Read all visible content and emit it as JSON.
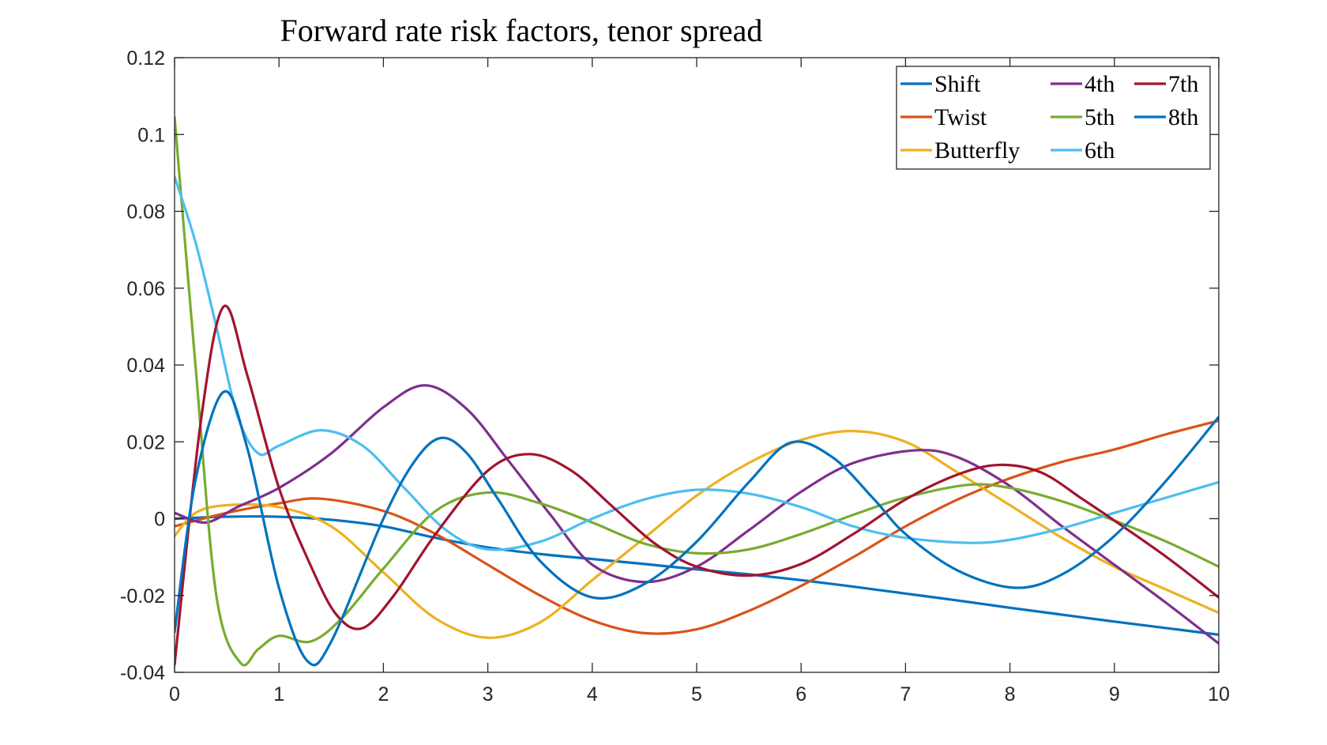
{
  "chart_data": {
    "type": "line",
    "title": "Forward rate risk factors, tenor spread",
    "xlabel": "",
    "ylabel": "",
    "xlim": [
      0,
      10
    ],
    "ylim": [
      -0.04,
      0.12
    ],
    "xticks": [
      0,
      1,
      2,
      3,
      4,
      5,
      6,
      7,
      8,
      9,
      10
    ],
    "xtick_labels": [
      "0",
      "1",
      "2",
      "3",
      "4",
      "5",
      "6",
      "7",
      "8",
      "9",
      "10"
    ],
    "yticks": [
      -0.04,
      -0.02,
      0,
      0.02,
      0.04,
      0.06,
      0.08,
      0.1,
      0.12
    ],
    "ytick_labels": [
      "-0.04",
      "-0.02",
      "0",
      "0.02",
      "0.04",
      "0.06",
      "0.08",
      "0.1",
      "0.12"
    ],
    "grid": false,
    "legend_position": "top-right",
    "legend_columns": [
      [
        "Shift",
        "Twist",
        "Butterfly"
      ],
      [
        "4th",
        "5th",
        "6th"
      ],
      [
        "7th",
        "8th"
      ]
    ],
    "series": [
      {
        "name": "Shift",
        "color": "#0072BD",
        "x": [
          0,
          0.5,
          1,
          1.5,
          2,
          2.5,
          3,
          3.5,
          4,
          4.5,
          5,
          5.5,
          6,
          6.5,
          7,
          7.5,
          8,
          8.5,
          9,
          9.5,
          10
        ],
        "y": [
          0,
          0.0005,
          0.0005,
          -0.0003,
          -0.002,
          -0.005,
          -0.0075,
          -0.0092,
          -0.0105,
          -0.0118,
          -0.0132,
          -0.0145,
          -0.016,
          -0.0177,
          -0.0195,
          -0.0213,
          -0.0232,
          -0.025,
          -0.0268,
          -0.0285,
          -0.0302
        ]
      },
      {
        "name": "Twist",
        "color": "#D95319",
        "x": [
          0,
          0.5,
          1,
          1.4,
          2,
          2.5,
          3,
          3.5,
          4,
          4.5,
          5,
          5.5,
          6,
          6.5,
          7,
          7.5,
          8,
          8.5,
          9,
          9.5,
          10
        ],
        "y": [
          -0.002,
          0.0015,
          0.004,
          0.0052,
          0.002,
          -0.004,
          -0.012,
          -0.02,
          -0.0265,
          -0.0298,
          -0.0288,
          -0.024,
          -0.0175,
          -0.01,
          -0.002,
          0.005,
          0.0105,
          0.0148,
          0.018,
          0.022,
          0.0255
        ]
      },
      {
        "name": "Butterfly",
        "color": "#EDB120",
        "x": [
          0,
          0.2,
          0.5,
          1,
          1.5,
          2,
          2.5,
          3,
          3.5,
          4,
          4.5,
          5,
          5.5,
          6,
          6.5,
          7,
          7.5,
          8,
          8.5,
          9,
          9.5,
          10
        ],
        "y": [
          -0.0045,
          0.0015,
          0.0035,
          0.003,
          -0.002,
          -0.014,
          -0.026,
          -0.031,
          -0.027,
          -0.016,
          -0.005,
          0.006,
          0.0145,
          0.0205,
          0.0228,
          0.02,
          0.012,
          0.0035,
          -0.005,
          -0.0125,
          -0.0185,
          -0.0245
        ]
      },
      {
        "name": "4th",
        "color": "#7E2F8E",
        "x": [
          0,
          0.3,
          0.6,
          1,
          1.5,
          2,
          2.4,
          2.8,
          3.2,
          3.6,
          4,
          4.5,
          5,
          5.5,
          6,
          6.5,
          7.1,
          7.5,
          8,
          8.5,
          9,
          9.5,
          10
        ],
        "y": [
          0.0015,
          -0.001,
          0.003,
          0.008,
          0.017,
          0.029,
          0.0347,
          0.0285,
          0.015,
          0.001,
          -0.012,
          -0.0165,
          -0.0125,
          -0.003,
          0.007,
          0.0145,
          0.0178,
          0.016,
          0.0085,
          -0.002,
          -0.012,
          -0.022,
          -0.0325
        ]
      },
      {
        "name": "5th",
        "color": "#77AC30",
        "x": [
          0,
          0.2,
          0.4,
          0.63,
          0.8,
          1,
          1.3,
          1.6,
          2,
          2.5,
          3,
          3.5,
          4,
          4.5,
          5,
          5.5,
          6,
          6.5,
          7,
          7.6,
          8,
          8.5,
          9,
          9.5,
          10
        ],
        "y": [
          0.1045,
          0.04,
          -0.02,
          -0.0375,
          -0.034,
          -0.0305,
          -0.032,
          -0.026,
          -0.013,
          0.002,
          0.0068,
          0.004,
          -0.001,
          -0.0065,
          -0.009,
          -0.008,
          -0.004,
          0.001,
          0.0055,
          0.0088,
          0.008,
          0.0045,
          -0.0005,
          -0.006,
          -0.0125
        ]
      },
      {
        "name": "6th",
        "color": "#4DBEEE",
        "x": [
          0,
          0.2,
          0.4,
          0.6,
          0.8,
          1,
          1.4,
          1.8,
          2.2,
          2.6,
          3,
          3.5,
          4,
          4.5,
          5,
          5.5,
          6,
          6.5,
          7,
          7.6,
          8,
          8.5,
          9,
          9.5,
          10
        ],
        "y": [
          0.089,
          0.072,
          0.05,
          0.027,
          0.017,
          0.019,
          0.023,
          0.019,
          0.008,
          -0.003,
          -0.008,
          -0.006,
          0.0,
          0.005,
          0.0075,
          0.0065,
          0.003,
          -0.002,
          -0.005,
          -0.0063,
          -0.0055,
          -0.0025,
          0.0015,
          0.0055,
          0.0095
        ]
      },
      {
        "name": "7th",
        "color": "#A2142F",
        "x": [
          0,
          0.25,
          0.47,
          0.7,
          1,
          1.3,
          1.55,
          1.8,
          2.1,
          2.5,
          3,
          3.4,
          3.8,
          4.2,
          4.6,
          5,
          5.5,
          6,
          6.5,
          7,
          7.5,
          7.9,
          8.3,
          8.7,
          9,
          9.5,
          10
        ],
        "y": [
          -0.038,
          0.025,
          0.0552,
          0.037,
          0.008,
          -0.012,
          -0.025,
          -0.0285,
          -0.02,
          -0.004,
          0.0125,
          0.0168,
          0.0125,
          0.003,
          -0.0065,
          -0.0125,
          -0.0148,
          -0.0118,
          -0.004,
          0.005,
          0.0115,
          0.014,
          0.012,
          0.005,
          -0.0005,
          -0.01,
          -0.0205
        ]
      },
      {
        "name": "8th",
        "color": "#0072BD",
        "x": [
          0,
          0.2,
          0.47,
          0.7,
          1,
          1.27,
          1.5,
          2,
          2.3,
          2.55,
          2.8,
          3.1,
          3.5,
          4,
          4.5,
          5,
          5.5,
          5.9,
          6.3,
          6.7,
          7,
          7.5,
          8.05,
          8.5,
          9,
          9.5,
          10
        ],
        "y": [
          -0.0295,
          0.01,
          0.033,
          0.018,
          -0.018,
          -0.037,
          -0.032,
          0.0,
          0.015,
          0.021,
          0.017,
          0.005,
          -0.011,
          -0.0205,
          -0.017,
          -0.006,
          0.0095,
          0.0198,
          0.016,
          0.005,
          -0.004,
          -0.0135,
          -0.018,
          -0.0145,
          -0.0045,
          0.01,
          0.0265
        ]
      }
    ]
  }
}
